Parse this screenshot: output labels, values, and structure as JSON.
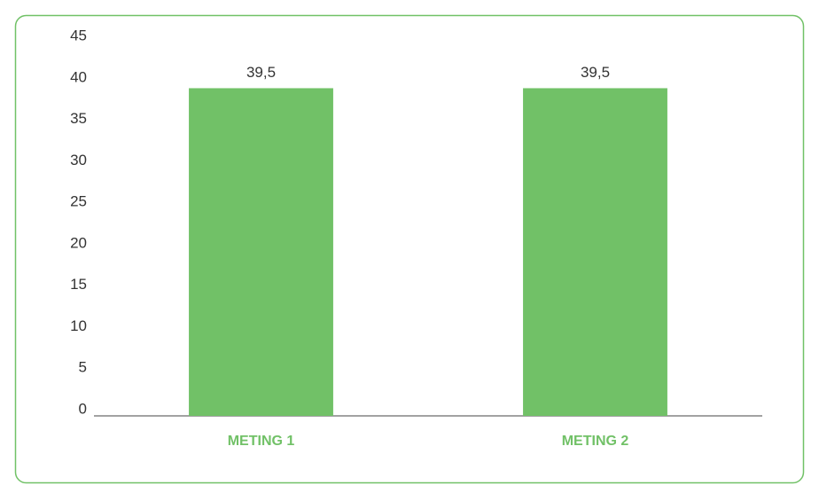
{
  "chart_data": {
    "type": "bar",
    "categories": [
      "METING 1",
      "METING 2"
    ],
    "values": [
      39.5,
      39.5
    ],
    "value_labels": [
      "39,5",
      "39,5"
    ],
    "color": "#71c167",
    "ylim": [
      0,
      45
    ],
    "yticks": [
      0,
      5,
      10,
      15,
      20,
      25,
      30,
      35,
      40,
      45
    ],
    "grid": false
  }
}
